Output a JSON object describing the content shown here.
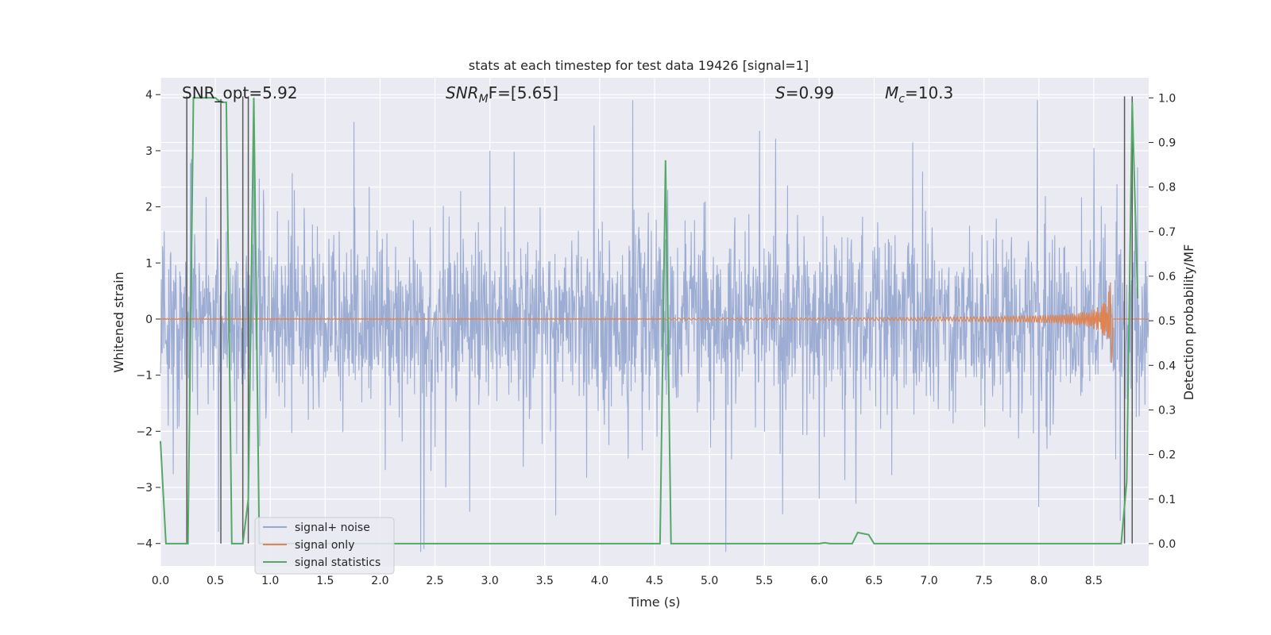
{
  "chart_data": {
    "type": "line",
    "title": "stats at each timestep for test data 19426 [signal=1]",
    "xlabel": "Time (s)",
    "ylabel": "Whitened strain",
    "ylabel_right": "Detection probability/MF",
    "xlim": [
      0.0,
      9.0
    ],
    "ylim": [
      -4.4,
      4.3
    ],
    "ylim_right": [
      -0.05,
      1.045
    ],
    "grid": true,
    "legend_position": "lower-left",
    "x_ticks": [
      "0.0",
      "0.5",
      "1.0",
      "1.5",
      "2.0",
      "2.5",
      "3.0",
      "3.5",
      "4.0",
      "4.5",
      "5.0",
      "5.5",
      "6.0",
      "6.5",
      "7.0",
      "7.5",
      "8.0",
      "8.5"
    ],
    "y_ticks": [
      "4",
      "3",
      "2",
      "1",
      "0",
      "−1",
      "−2",
      "−3",
      "−4"
    ],
    "y_ticks_right": [
      "1.0",
      "0.9",
      "0.8",
      "0.7",
      "0.6",
      "0.5",
      "0.4",
      "0.3",
      "0.2",
      "0.1",
      "0.0"
    ],
    "annotations": {
      "snr_opt": "SNR_opt=5.92",
      "snr_mf_base": "SNR",
      "snr_mf_sub": "M",
      "snr_mf_rest": "F=[5.65]",
      "s_label": "S",
      "s_value": "=0.99",
      "mc_base": "M",
      "mc_sub": "c",
      "mc_value": "=10.3"
    },
    "series": [
      {
        "name": "signal+ noise",
        "color": "#98a9d1",
        "axis": "left",
        "description_type": "noise",
        "envelope_half": 1.55,
        "notable_peaks": [
          [
            0.28,
            2.85
          ],
          [
            0.85,
            3.95
          ],
          [
            1.2,
            2.6
          ],
          [
            3.0,
            3.0
          ],
          [
            3.95,
            3.45
          ],
          [
            4.3,
            3.9
          ],
          [
            4.62,
            2.3
          ],
          [
            6.85,
            3.15
          ],
          [
            8.5,
            3.05
          ],
          [
            8.9,
            2.7
          ]
        ],
        "notable_troughs": [
          [
            0.55,
            -2.6
          ],
          [
            2.4,
            -4.1
          ],
          [
            2.6,
            -3.0
          ],
          [
            3.6,
            -3.5
          ],
          [
            5.2,
            -2.5
          ],
          [
            6.0,
            -3.2
          ],
          [
            8.0,
            -3.35
          ],
          [
            8.7,
            -2.5
          ]
        ]
      },
      {
        "name": "signal only",
        "color": "#dd8452",
        "axis": "left",
        "description_type": "chirp",
        "start_time": 4.6,
        "merger_time": 8.67,
        "peak_amplitude": 0.8,
        "min_amplitude": -1.0
      },
      {
        "name": "signal statistics",
        "color": "#55a868",
        "axis": "right",
        "x": [
          0.0,
          0.05,
          0.1,
          0.15,
          0.2,
          0.25,
          0.3,
          0.35,
          0.4,
          0.45,
          0.5,
          0.55,
          0.6,
          0.65,
          0.7,
          0.75,
          0.8,
          0.85,
          0.9,
          0.95,
          1.0,
          4.5,
          4.55,
          4.6,
          4.65,
          4.7,
          5.0,
          6.0,
          6.05,
          6.1,
          6.3,
          6.35,
          6.45,
          6.5,
          8.6,
          8.65,
          8.7,
          8.75,
          8.8,
          8.85,
          8.9
        ],
        "values": [
          0.23,
          0.0,
          0.0,
          0.0,
          0.0,
          0.0,
          1.0,
          1.0,
          1.0,
          1.0,
          1.0,
          0.99,
          0.99,
          0.0,
          0.0,
          0.0,
          0.1,
          1.0,
          0.0,
          0.0,
          0.0,
          0.0,
          0.0,
          0.86,
          0.0,
          0.0,
          0.0,
          0.0,
          0.002,
          0.0,
          0.0,
          0.025,
          0.02,
          0.0,
          0.0,
          0.0,
          0.0,
          0.0,
          0.14,
          0.99,
          0.55
        ]
      }
    ],
    "vertical_markers": [
      {
        "x": 0.24,
        "y_top": 3.97,
        "y_bottom": -4.0,
        "color": "#5a5a5a"
      },
      {
        "x": 0.55,
        "y_top": 3.92,
        "y_bottom": -4.0,
        "color": "#5a5a5a"
      },
      {
        "x": 0.75,
        "y_top": 3.97,
        "y_bottom": -4.0,
        "color": "#5a5a5a"
      },
      {
        "x": 0.8,
        "y_top": 3.97,
        "y_bottom": -4.0,
        "color": "#5a5a5a"
      },
      {
        "x": 8.78,
        "y_top": 3.97,
        "y_bottom": -4.0,
        "color": "#5a5a5a"
      },
      {
        "x": 8.85,
        "y_top": 3.97,
        "y_bottom": -4.0,
        "color": "#5a5a5a"
      }
    ]
  },
  "colors": {
    "plot_background": "#eaeaf2",
    "grid": "#ffffff",
    "noise": "#98a9d1",
    "signal": "#dd8452",
    "stats": "#55a868",
    "marker": "#5a5a5a"
  }
}
